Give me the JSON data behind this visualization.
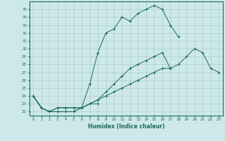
{
  "xlabel": "Humidex (Indice chaleur)",
  "xlim": [
    -0.5,
    23.5
  ],
  "ylim": [
    21.5,
    36.0
  ],
  "yticks": [
    22,
    23,
    24,
    25,
    26,
    27,
    28,
    29,
    30,
    31,
    32,
    33,
    34,
    35
  ],
  "xticks": [
    0,
    1,
    2,
    3,
    4,
    5,
    6,
    7,
    8,
    9,
    10,
    11,
    12,
    13,
    14,
    15,
    16,
    17,
    18,
    19,
    20,
    21,
    22,
    23
  ],
  "xtick_labels": [
    "0",
    "1",
    "2",
    "3",
    "4",
    "5",
    "6",
    "7",
    "8",
    "9",
    "10",
    "11",
    "12",
    "13",
    "14",
    "15",
    "16",
    "17",
    "18",
    "19",
    "20",
    "21",
    "22",
    "23"
  ],
  "line_color": "#1a6b5a",
  "bg_color": "#cde8ea",
  "grid_color": "#b0cccc",
  "series": [
    {
      "x": [
        0,
        1,
        2,
        3,
        4,
        5,
        6,
        7,
        8,
        9,
        10,
        11,
        12,
        13,
        14,
        15,
        16,
        17,
        18
      ],
      "y": [
        24.0,
        22.5,
        22.0,
        22.0,
        22.0,
        22.0,
        22.5,
        25.5,
        29.5,
        32.0,
        32.5,
        34.0,
        33.5,
        34.5,
        35.0,
        35.5,
        35.0,
        33.0,
        31.5
      ]
    },
    {
      "x": [
        0,
        1,
        2,
        3,
        4,
        5,
        6,
        7,
        8
      ],
      "y": [
        24.0,
        22.5,
        22.0,
        22.0,
        22.0,
        22.0,
        22.5,
        23.0,
        23.0
      ]
    },
    {
      "x": [
        0,
        1,
        2,
        3,
        4,
        5,
        6,
        7,
        8,
        9,
        10,
        11,
        12,
        13,
        14,
        15,
        16,
        17,
        18,
        19,
        20,
        21,
        22,
        23
      ],
      "y": [
        24.0,
        22.5,
        22.0,
        22.5,
        22.5,
        22.5,
        22.5,
        23.0,
        23.5,
        24.0,
        24.5,
        25.0,
        25.5,
        26.0,
        26.5,
        27.0,
        27.5,
        27.5,
        28.0,
        29.0,
        30.0,
        29.5,
        27.5,
        27.0
      ]
    },
    {
      "x": [
        0,
        1,
        2,
        3,
        4,
        5,
        6,
        7,
        8,
        9,
        10,
        11,
        12,
        13,
        14,
        15,
        16,
        17
      ],
      "y": [
        24.0,
        22.5,
        22.0,
        22.5,
        22.5,
        22.5,
        22.5,
        23.0,
        23.5,
        24.5,
        25.5,
        26.5,
        27.5,
        28.0,
        28.5,
        29.0,
        29.5,
        27.5
      ]
    }
  ]
}
